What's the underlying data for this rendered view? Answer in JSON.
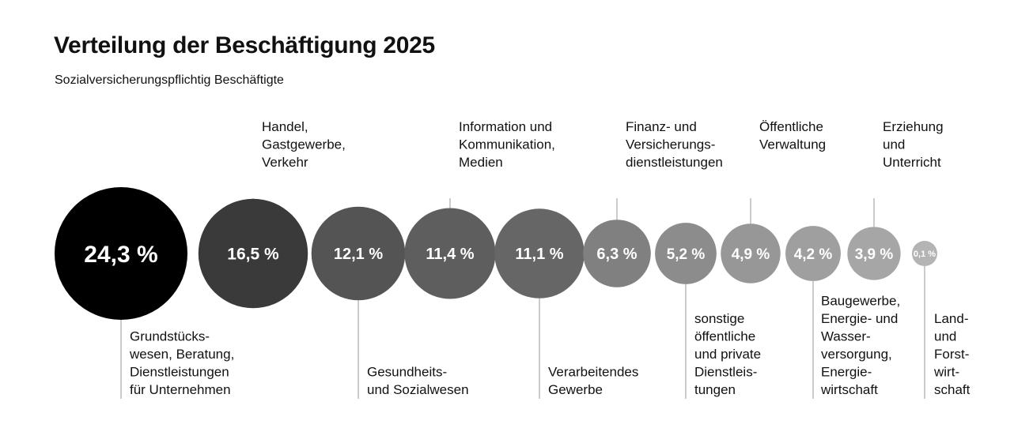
{
  "title": "Verteilung der Beschäftigung 2025",
  "subtitle": "Sozialversicherungspflichtig Beschäftigte",
  "chart_data": {
    "type": "bubble",
    "title": "Verteilung der Beschäftigung 2025",
    "subtitle": "Sozialversicherungspflichtig Beschäftigte",
    "unit": "%",
    "items": [
      {
        "label_lines": [
          "Grundstücks-",
          "wesen, Beratung,",
          "Dienstleistungen",
          "für Unternehmen"
        ],
        "value": 24.3,
        "display": "24,3 %",
        "label_side": "bottom",
        "color": "#000000"
      },
      {
        "label_lines": [
          "Handel,",
          "Gastgewerbe,",
          "Verkehr"
        ],
        "value": 16.5,
        "display": "16,5 %",
        "label_side": "top",
        "color": "#3a3a3a"
      },
      {
        "label_lines": [
          "Gesundheits-",
          "und Sozialwesen"
        ],
        "value": 12.1,
        "display": "12,1 %",
        "label_side": "bottom",
        "color": "#545454"
      },
      {
        "label_lines": [
          "Information und",
          "Kommunikation,",
          "Medien"
        ],
        "value": 11.4,
        "display": "11,4 %",
        "label_side": "top",
        "color": "#5e5e5e"
      },
      {
        "label_lines": [
          "Verarbeitendes",
          "Gewerbe"
        ],
        "value": 11.1,
        "display": "11,1 %",
        "label_side": "bottom",
        "color": "#666666"
      },
      {
        "label_lines": [
          "Finanz- und",
          "Versicherungs-",
          "dienstleistungen"
        ],
        "value": 6.3,
        "display": "6,3 %",
        "label_side": "top",
        "color": "#808080"
      },
      {
        "label_lines": [
          "sonstige",
          "öffentliche",
          "und private",
          "Dienstleis-",
          "tungen"
        ],
        "value": 5.2,
        "display": "5,2 %",
        "label_side": "bottom",
        "color": "#8c8c8c"
      },
      {
        "label_lines": [
          "Öffentliche",
          "Verwaltung"
        ],
        "value": 4.9,
        "display": "4,9 %",
        "label_side": "top",
        "color": "#979797"
      },
      {
        "label_lines": [
          "Baugewerbe,",
          "Energie- und",
          "Wasser-",
          "versorgung,",
          "Energie-",
          "wirtschaft"
        ],
        "value": 4.2,
        "display": "4,2 %",
        "label_side": "bottom",
        "color": "#9f9f9f"
      },
      {
        "label_lines": [
          "Erziehung",
          "und",
          "Unterricht"
        ],
        "value": 3.9,
        "display": "3,9 %",
        "label_side": "top",
        "color": "#a6a6a6"
      },
      {
        "label_lines": [
          "Land-",
          "und",
          "Forst-",
          "wirt-",
          "schaft"
        ],
        "value": 0.1,
        "display": "0,1 %",
        "label_side": "bottom",
        "color": "#b4b4b4"
      }
    ]
  }
}
